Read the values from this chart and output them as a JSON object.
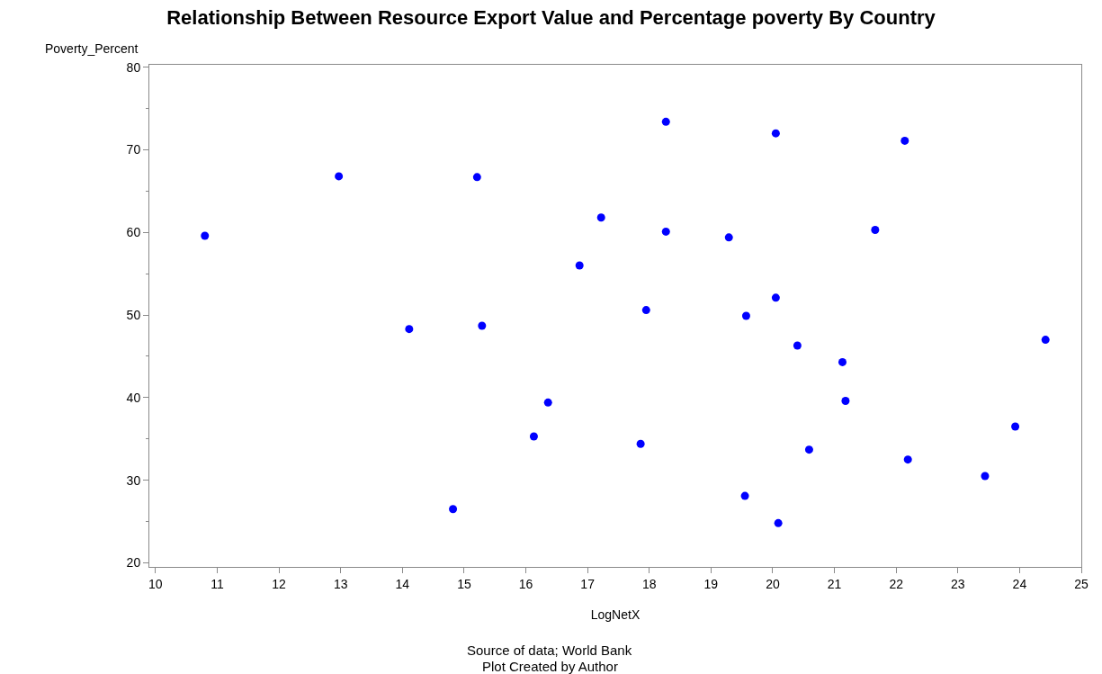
{
  "chart_data": {
    "type": "scatter",
    "title": "Relationship Between Resource Export Value and Percentage poverty By Country",
    "xlabel": "LogNetX",
    "ylabel": "Poverty_Percent",
    "x": [
      10.8,
      12.97,
      15.21,
      14.11,
      15.29,
      14.82,
      16.13,
      16.36,
      16.87,
      17.22,
      17.95,
      17.86,
      18.27,
      18.27,
      19.29,
      19.57,
      19.55,
      20.05,
      20.05,
      20.09,
      20.4,
      20.59,
      21.13,
      21.18,
      21.66,
      22.14,
      22.19,
      23.44,
      23.93,
      24.42
    ],
    "series": [
      {
        "color": "#0000ff",
        "values": [
          59.6,
          66.8,
          66.7,
          48.3,
          48.7,
          26.5,
          35.3,
          39.4,
          56.0,
          61.8,
          50.6,
          34.4,
          73.4,
          60.1,
          59.4,
          49.9,
          28.1,
          72.0,
          52.1,
          24.8,
          46.3,
          33.7,
          44.3,
          39.6,
          60.3,
          71.1,
          32.5,
          30.5,
          36.5,
          47.0
        ]
      }
    ],
    "marker": "circle",
    "xlim": [
      9.9,
      25
    ],
    "ylim": [
      19.5,
      80.3
    ],
    "xticks": [
      10,
      11,
      12,
      13,
      14,
      15,
      16,
      17,
      18,
      19,
      20,
      21,
      22,
      23,
      24,
      25
    ],
    "yticks": [
      20,
      30,
      40,
      50,
      60,
      70,
      80
    ],
    "grid": false,
    "annotations": [
      "Source of data; World Bank",
      "Plot Created by Author"
    ]
  }
}
